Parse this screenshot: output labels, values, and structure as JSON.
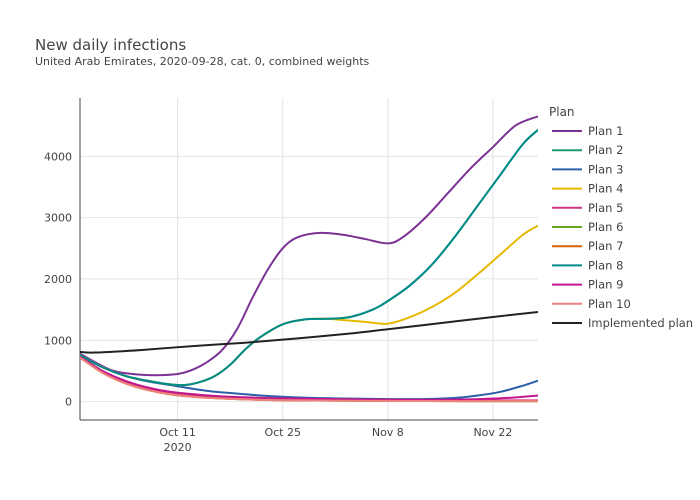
{
  "chart_data": {
    "type": "line",
    "title": "New daily infections",
    "subtitle": "United Arab Emirates, 2020-09-28, cat. 0, combined weights",
    "legend_title": "Plan",
    "legend_position": "right",
    "grid": true,
    "xlim": [
      "2020-09-28",
      "2020-11-28"
    ],
    "ylim": [
      -300,
      4950
    ],
    "y_ticks": [
      0,
      1000,
      2000,
      3000,
      4000
    ],
    "y_tick_labels": [
      "0",
      "1000",
      "2000",
      "3000",
      "4000"
    ],
    "x_ticks": [
      "2020-10-11",
      "2020-10-25",
      "2020-11-08",
      "2020-11-22"
    ],
    "x_tick_labels": [
      "Oct 11",
      "Oct 25",
      "Nov 8",
      "Nov 22"
    ],
    "x_year_label": "2020",
    "series": [
      {
        "name": "Plan 1",
        "color": "#7b3294",
        "points": [
          [
            "2020-09-28",
            780
          ],
          [
            "2020-10-02",
            520
          ],
          [
            "2020-10-05",
            450
          ],
          [
            "2020-10-08",
            430
          ],
          [
            "2020-10-11",
            450
          ],
          [
            "2020-10-13",
            520
          ],
          [
            "2020-10-15",
            650
          ],
          [
            "2020-10-17",
            850
          ],
          [
            "2020-10-19",
            1200
          ],
          [
            "2020-10-21",
            1700
          ],
          [
            "2020-10-23",
            2150
          ],
          [
            "2020-10-25",
            2500
          ],
          [
            "2020-10-27",
            2680
          ],
          [
            "2020-10-30",
            2750
          ],
          [
            "2020-11-02",
            2720
          ],
          [
            "2020-11-05",
            2650
          ],
          [
            "2020-11-08",
            2580
          ],
          [
            "2020-11-10",
            2680
          ],
          [
            "2020-11-13",
            3000
          ],
          [
            "2020-11-16",
            3400
          ],
          [
            "2020-11-19",
            3800
          ],
          [
            "2020-11-22",
            4150
          ],
          [
            "2020-11-25",
            4500
          ],
          [
            "2020-11-28",
            4650
          ]
        ]
      },
      {
        "name": "Plan 2",
        "color": "#1b9e77",
        "points": [
          [
            "2020-09-28",
            760
          ],
          [
            "2020-10-01",
            560
          ],
          [
            "2020-10-04",
            420
          ],
          [
            "2020-10-07",
            340
          ],
          [
            "2020-10-10",
            280
          ],
          [
            "2020-10-12",
            270
          ],
          [
            "2020-10-14",
            320
          ],
          [
            "2020-10-16",
            420
          ],
          [
            "2020-10-18",
            600
          ],
          [
            "2020-10-20",
            850
          ],
          [
            "2020-10-22",
            1050
          ],
          [
            "2020-10-25",
            1260
          ],
          [
            "2020-10-28",
            1340
          ],
          [
            "2020-10-31",
            1350
          ],
          [
            "2020-11-03",
            1380
          ],
          [
            "2020-11-06",
            1500
          ],
          [
            "2020-11-08",
            1640
          ],
          [
            "2020-11-11",
            1900
          ],
          [
            "2020-11-14",
            2250
          ],
          [
            "2020-11-17",
            2700
          ],
          [
            "2020-11-20",
            3200
          ],
          [
            "2020-11-23",
            3700
          ],
          [
            "2020-11-26",
            4200
          ],
          [
            "2020-11-28",
            4430
          ]
        ]
      },
      {
        "name": "Plan 3",
        "color": "#2c5fa8",
        "points": [
          [
            "2020-09-28",
            740
          ],
          [
            "2020-10-01",
            560
          ],
          [
            "2020-10-04",
            420
          ],
          [
            "2020-10-07",
            330
          ],
          [
            "2020-10-10",
            270
          ],
          [
            "2020-10-13",
            210
          ],
          [
            "2020-10-16",
            160
          ],
          [
            "2020-10-19",
            130
          ],
          [
            "2020-10-22",
            100
          ],
          [
            "2020-10-25",
            80
          ],
          [
            "2020-10-29",
            60
          ],
          [
            "2020-11-02",
            50
          ],
          [
            "2020-11-06",
            45
          ],
          [
            "2020-11-10",
            40
          ],
          [
            "2020-11-14",
            45
          ],
          [
            "2020-11-17",
            60
          ],
          [
            "2020-11-20",
            100
          ],
          [
            "2020-11-23",
            160
          ],
          [
            "2020-11-26",
            260
          ],
          [
            "2020-11-28",
            340
          ]
        ]
      },
      {
        "name": "Plan 4",
        "color": "#e6b800",
        "points": [
          [
            "2020-09-28",
            760
          ],
          [
            "2020-10-01",
            560
          ],
          [
            "2020-10-04",
            420
          ],
          [
            "2020-10-07",
            340
          ],
          [
            "2020-10-10",
            280
          ],
          [
            "2020-10-12",
            270
          ],
          [
            "2020-10-14",
            320
          ],
          [
            "2020-10-16",
            420
          ],
          [
            "2020-10-18",
            600
          ],
          [
            "2020-10-20",
            850
          ],
          [
            "2020-10-22",
            1050
          ],
          [
            "2020-10-25",
            1260
          ],
          [
            "2020-10-28",
            1340
          ],
          [
            "2020-10-31",
            1350
          ],
          [
            "2020-11-02",
            1330
          ],
          [
            "2020-11-05",
            1300
          ],
          [
            "2020-11-08",
            1270
          ],
          [
            "2020-11-11",
            1380
          ],
          [
            "2020-11-14",
            1550
          ],
          [
            "2020-11-17",
            1780
          ],
          [
            "2020-11-20",
            2080
          ],
          [
            "2020-11-23",
            2400
          ],
          [
            "2020-11-26",
            2720
          ],
          [
            "2020-11-28",
            2870
          ]
        ]
      },
      {
        "name": "Plan 5",
        "color": "#d63384",
        "points": [
          [
            "2020-09-28",
            720
          ],
          [
            "2020-10-01",
            480
          ],
          [
            "2020-10-04",
            310
          ],
          [
            "2020-10-07",
            200
          ],
          [
            "2020-10-10",
            140
          ],
          [
            "2020-10-14",
            90
          ],
          [
            "2020-10-18",
            60
          ],
          [
            "2020-10-24",
            35
          ],
          [
            "2020-11-01",
            25
          ],
          [
            "2020-11-10",
            20
          ],
          [
            "2020-11-18",
            20
          ],
          [
            "2020-11-28",
            20
          ]
        ]
      },
      {
        "name": "Plan 6",
        "color": "#66a61e",
        "points": [
          [
            "2020-09-28",
            720
          ],
          [
            "2020-10-01",
            470
          ],
          [
            "2020-10-04",
            300
          ],
          [
            "2020-10-07",
            190
          ],
          [
            "2020-10-10",
            120
          ],
          [
            "2020-10-14",
            70
          ],
          [
            "2020-10-18",
            45
          ],
          [
            "2020-10-24",
            25
          ],
          [
            "2020-11-01",
            15
          ],
          [
            "2020-11-10",
            10
          ],
          [
            "2020-11-18",
            8
          ],
          [
            "2020-11-28",
            8
          ]
        ]
      },
      {
        "name": "Plan 7",
        "color": "#d95f02",
        "points": [
          [
            "2020-09-28",
            720
          ],
          [
            "2020-10-01",
            470
          ],
          [
            "2020-10-04",
            300
          ],
          [
            "2020-10-07",
            190
          ],
          [
            "2020-10-10",
            120
          ],
          [
            "2020-10-14",
            70
          ],
          [
            "2020-10-18",
            45
          ],
          [
            "2020-10-24",
            25
          ],
          [
            "2020-11-01",
            15
          ],
          [
            "2020-11-10",
            10
          ],
          [
            "2020-11-18",
            8
          ],
          [
            "2020-11-28",
            8
          ]
        ]
      },
      {
        "name": "Plan 8",
        "color": "#008b8b",
        "points": [
          [
            "2020-09-28",
            760
          ],
          [
            "2020-10-01",
            560
          ],
          [
            "2020-10-04",
            420
          ],
          [
            "2020-10-07",
            340
          ],
          [
            "2020-10-10",
            280
          ],
          [
            "2020-10-12",
            270
          ],
          [
            "2020-10-14",
            320
          ],
          [
            "2020-10-16",
            420
          ],
          [
            "2020-10-18",
            600
          ],
          [
            "2020-10-20",
            850
          ],
          [
            "2020-10-22",
            1050
          ],
          [
            "2020-10-25",
            1260
          ],
          [
            "2020-10-28",
            1340
          ],
          [
            "2020-10-31",
            1350
          ],
          [
            "2020-11-03",
            1380
          ],
          [
            "2020-11-06",
            1500
          ],
          [
            "2020-11-08",
            1640
          ],
          [
            "2020-11-11",
            1900
          ],
          [
            "2020-11-14",
            2250
          ],
          [
            "2020-11-17",
            2700
          ],
          [
            "2020-11-20",
            3200
          ],
          [
            "2020-11-23",
            3700
          ],
          [
            "2020-11-26",
            4200
          ],
          [
            "2020-11-28",
            4430
          ]
        ]
      },
      {
        "name": "Plan 9",
        "color": "#c2188e",
        "points": [
          [
            "2020-09-28",
            730
          ],
          [
            "2020-10-01",
            500
          ],
          [
            "2020-10-04",
            340
          ],
          [
            "2020-10-07",
            230
          ],
          [
            "2020-10-10",
            160
          ],
          [
            "2020-10-14",
            110
          ],
          [
            "2020-10-18",
            80
          ],
          [
            "2020-10-24",
            55
          ],
          [
            "2020-11-01",
            40
          ],
          [
            "2020-11-10",
            30
          ],
          [
            "2020-11-16",
            30
          ],
          [
            "2020-11-20",
            40
          ],
          [
            "2020-11-24",
            60
          ],
          [
            "2020-11-28",
            100
          ]
        ]
      },
      {
        "name": "Plan 10",
        "color": "#f08080",
        "points": [
          [
            "2020-09-28",
            720
          ],
          [
            "2020-10-01",
            470
          ],
          [
            "2020-10-04",
            300
          ],
          [
            "2020-10-07",
            190
          ],
          [
            "2020-10-10",
            120
          ],
          [
            "2020-10-14",
            70
          ],
          [
            "2020-10-18",
            45
          ],
          [
            "2020-10-24",
            25
          ],
          [
            "2020-11-01",
            15
          ],
          [
            "2020-11-10",
            10
          ],
          [
            "2020-11-18",
            8
          ],
          [
            "2020-11-28",
            8
          ]
        ]
      },
      {
        "name": "Implemented plan",
        "color": "#222222",
        "points": [
          [
            "2020-09-28",
            810
          ],
          [
            "2020-09-30",
            800
          ],
          [
            "2020-10-06",
            840
          ],
          [
            "2020-10-13",
            905
          ],
          [
            "2020-10-20",
            960
          ],
          [
            "2020-10-27",
            1030
          ],
          [
            "2020-11-03",
            1110
          ],
          [
            "2020-11-08",
            1180
          ],
          [
            "2020-11-15",
            1280
          ],
          [
            "2020-11-22",
            1380
          ],
          [
            "2020-11-28",
            1460
          ]
        ]
      }
    ]
  }
}
